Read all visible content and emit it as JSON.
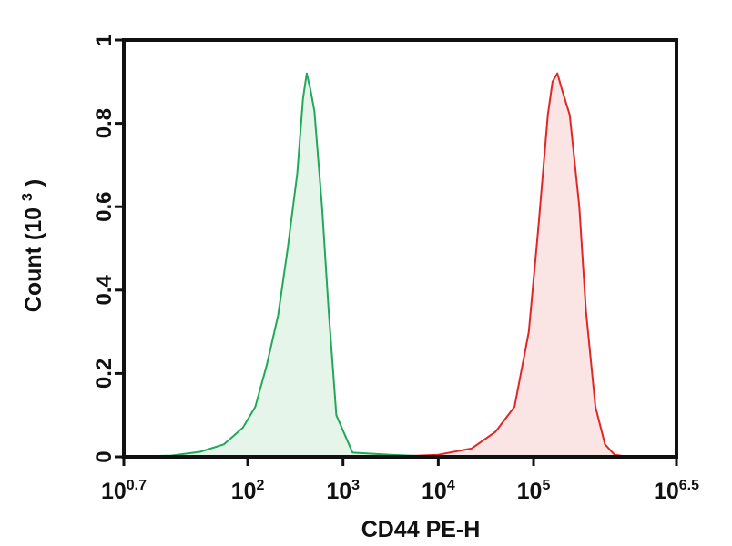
{
  "chart_data": {
    "type": "area",
    "xlabel": "CD44 PE-H",
    "ylabel": "Count",
    "ylabel_suffix": "(10",
    "ylabel_exponent": "3",
    "ylabel_close": ")",
    "x_scale": "log10",
    "xlim": [
      0.7,
      6.5
    ],
    "ylim": [
      0,
      1
    ],
    "x_ticks": [
      {
        "base": "10",
        "exp": "0.7",
        "value": 0.7
      },
      {
        "base": "10",
        "exp": "2",
        "value": 2
      },
      {
        "base": "10",
        "exp": "3",
        "value": 3
      },
      {
        "base": "10",
        "exp": "4",
        "value": 4
      },
      {
        "base": "10",
        "exp": "5",
        "value": 5
      },
      {
        "base": "10",
        "exp": "6.5",
        "value": 6.5
      }
    ],
    "y_ticks": [
      "0",
      "0.2",
      "0.4",
      "0.6",
      "0.8",
      "1"
    ],
    "y_tick_values": [
      0,
      0.2,
      0.4,
      0.6,
      0.8,
      1
    ],
    "grid": false,
    "series": [
      {
        "color": "#22a85a",
        "fill": "#e6f5ea",
        "x": [
          0.7,
          1.2,
          1.5,
          1.75,
          1.95,
          2.08,
          2.2,
          2.32,
          2.42,
          2.52,
          2.58,
          2.62,
          2.66,
          2.7,
          2.78,
          2.85,
          2.93,
          3.1,
          3.5,
          4.0
        ],
        "y": [
          0.0,
          0.003,
          0.012,
          0.03,
          0.07,
          0.12,
          0.22,
          0.34,
          0.5,
          0.68,
          0.86,
          0.92,
          0.88,
          0.83,
          0.6,
          0.35,
          0.1,
          0.01,
          0.005,
          0.0
        ]
      },
      {
        "color": "#e12626",
        "fill": "#fbe4e4",
        "x": [
          3.5,
          4.0,
          4.35,
          4.6,
          4.8,
          4.95,
          5.05,
          5.15,
          5.2,
          5.25,
          5.3,
          5.38,
          5.48,
          5.55,
          5.65,
          5.75,
          5.85,
          6.0
        ],
        "y": [
          0.0,
          0.005,
          0.02,
          0.06,
          0.12,
          0.3,
          0.55,
          0.82,
          0.9,
          0.92,
          0.88,
          0.82,
          0.6,
          0.35,
          0.12,
          0.03,
          0.005,
          0.0
        ]
      }
    ]
  }
}
